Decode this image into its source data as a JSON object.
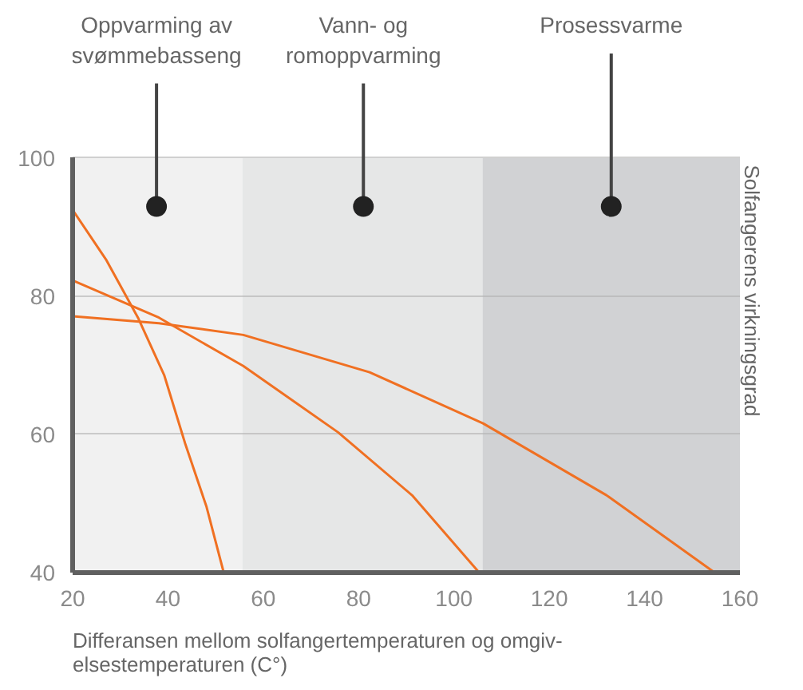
{
  "chart_data": {
    "type": "line",
    "xlabel": "Differansen mellom solfangertemperaturen og omgiv-\nelsestemperaturen (C°)",
    "ylabel": "Solfangerens virkningsgrad",
    "xlim": [
      20,
      160
    ],
    "ylim": [
      40,
      100
    ],
    "xticks": [
      20,
      40,
      60,
      80,
      100,
      120,
      140,
      160
    ],
    "yticks": [
      40,
      60,
      80,
      100
    ],
    "grid": "y",
    "marker": "none",
    "line_style": "solid",
    "bands": [
      {
        "axis": "x",
        "from": 20,
        "to": 55.6,
        "color": "#f1f1f1"
      },
      {
        "axis": "x",
        "from": 55.6,
        "to": 106,
        "color": "#e6e7e7"
      },
      {
        "axis": "x",
        "from": 106,
        "to": 160,
        "color": "#d1d2d4"
      }
    ],
    "annotations": [
      {
        "text": "Oppvarming av\nsvømmebasseng",
        "x": 37.6,
        "y": 93
      },
      {
        "text": "Vann- og\nromoppvarming",
        "x": 81,
        "y": 93
      },
      {
        "text": "Prosessvarme",
        "x": 133,
        "y": 93
      }
    ],
    "series": [
      {
        "color": "#f07022",
        "x": [
          20,
          27.1,
          33.7,
          39.2,
          43.6,
          48.1,
          51.7
        ],
        "values": [
          92.5,
          85.2,
          76.9,
          68.6,
          58.7,
          49.5,
          40
        ]
      },
      {
        "color": "#f07022",
        "x": [
          20,
          38.1,
          55.8,
          75.7,
          91.2,
          105.3
        ],
        "values": [
          82.3,
          76.9,
          69.9,
          60.3,
          51.2,
          40
        ]
      },
      {
        "color": "#f07022",
        "x": [
          20,
          38.1,
          55.8,
          82.3,
          106.1,
          132.0,
          154.7
        ],
        "values": [
          77.1,
          76.1,
          74.4,
          69.0,
          61.6,
          51.2,
          40
        ]
      }
    ]
  }
}
